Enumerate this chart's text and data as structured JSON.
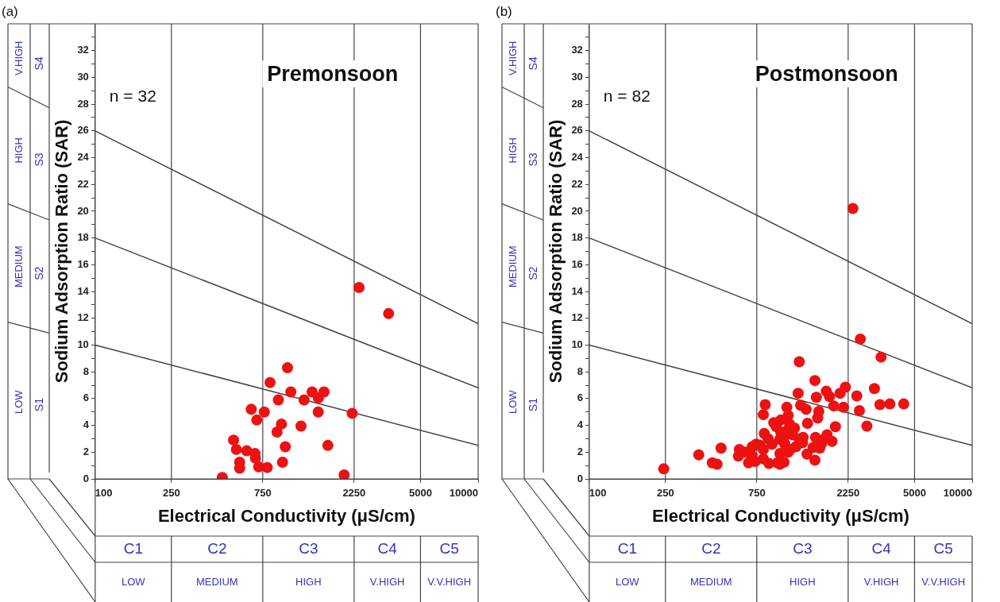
{
  "chart_data": [
    {
      "type": "scatter",
      "title": "Premonsoon",
      "xlabel": "Electrical Conductivity (μS/cm)",
      "ylabel": "Sodium Adsorption Ratio (SAR)",
      "log": "x",
      "xlim": [
        100,
        10000
      ],
      "ylim": [
        0,
        34
      ],
      "xticks": [
        100,
        250,
        750,
        2250,
        5000,
        10000
      ],
      "yticks": [
        0,
        {
          "value": 1,
          "label": null
        },
        2,
        {
          "value": 3,
          "label": null
        },
        4,
        {
          "value": 5,
          "label": null
        },
        6,
        {
          "value": 7,
          "label": null
        },
        8,
        {
          "value": 9,
          "label": null
        },
        10,
        {
          "value": 11,
          "label": null
        },
        12,
        {
          "value": 13,
          "label": null
        },
        14,
        {
          "value": 15,
          "label": null
        },
        16,
        {
          "value": 17,
          "label": null
        },
        18,
        {
          "value": 19,
          "label": null
        },
        20,
        {
          "value": 21,
          "label": null
        },
        22,
        {
          "value": 23,
          "label": null
        },
        24,
        {
          "value": 25,
          "label": null
        },
        26,
        {
          "value": 27,
          "label": null
        },
        28,
        {
          "value": 29,
          "label": null
        },
        30,
        {
          "value": 31,
          "label": null
        },
        32,
        {
          "value": 33,
          "label": null
        }
      ],
      "grid": false,
      "legend": false,
      "marker": "circle",
      "ref_lines": [
        {
          "axis": "x",
          "value": 250,
          "color": "#444444"
        },
        {
          "axis": "x",
          "value": 750,
          "color": "#444444"
        },
        {
          "axis": "x",
          "value": 2250,
          "color": "#444444"
        },
        {
          "axis": "x",
          "value": 5000,
          "color": "#444444"
        }
      ],
      "annotations": [
        "(a)",
        "n = 32",
        "S1",
        "S2",
        "S3",
        "S4",
        "LOW",
        "MEDIUM",
        "HIGH",
        "V.HIGH",
        "C1",
        "C2",
        "C3",
        "C4",
        "C5",
        "LOW",
        "MEDIUM",
        "HIGH",
        "V.HIGH",
        "V.V.HIGH"
      ],
      "series": [
        {
          "type": "line",
          "color": "#444444",
          "marker": "none",
          "x": [
            100,
            10000
          ],
          "values": [
            26,
            11.6
          ]
        },
        {
          "type": "line",
          "color": "#444444",
          "marker": "none",
          "x": [
            100,
            10000
          ],
          "values": [
            18,
            6.8
          ]
        },
        {
          "type": "line",
          "color": "#444444",
          "marker": "none",
          "x": [
            100,
            10000
          ],
          "values": [
            10,
            2.5
          ]
        },
        {
          "type": "scatter",
          "color": "#ee1111",
          "x": [
            2388,
            3406,
            1010,
            819,
            1051,
            1358,
            1566,
            1465,
            905,
            1233,
            653,
            764,
            1461,
            2198,
            698,
            939,
            1188,
            890,
            528,
            546,
            618,
            683,
            687,
            984,
            1641,
            568,
            568,
            714,
            792,
            951,
            1995,
            461
          ],
          "values": [
            14.3,
            12.35,
            8.3,
            7.2,
            6.5,
            6.5,
            6.5,
            6.05,
            5.9,
            5.9,
            5.2,
            5.0,
            5.0,
            4.9,
            4.4,
            4.1,
            3.95,
            3.5,
            2.9,
            2.2,
            2.1,
            1.9,
            1.55,
            2.4,
            2.5,
            1.25,
            0.8,
            0.9,
            0.85,
            1.25,
            0.3,
            0.1
          ]
        }
      ]
    },
    {
      "type": "scatter",
      "title": "Postmonsoon",
      "xlabel": "Electrical Conductivity (μS/cm)",
      "ylabel": "Sodium Adsorption Ratio (SAR)",
      "log": "x",
      "xlim": [
        100,
        10000
      ],
      "ylim": [
        0,
        34
      ],
      "xticks": [
        100,
        250,
        750,
        2250,
        5000,
        10000
      ],
      "yticks": [
        0,
        {
          "value": 1,
          "label": null
        },
        2,
        {
          "value": 3,
          "label": null
        },
        4,
        {
          "value": 5,
          "label": null
        },
        6,
        {
          "value": 7,
          "label": null
        },
        8,
        {
          "value": 9,
          "label": null
        },
        10,
        {
          "value": 11,
          "label": null
        },
        12,
        {
          "value": 13,
          "label": null
        },
        14,
        {
          "value": 15,
          "label": null
        },
        16,
        {
          "value": 17,
          "label": null
        },
        18,
        {
          "value": 19,
          "label": null
        },
        20,
        {
          "value": 21,
          "label": null
        },
        22,
        {
          "value": 23,
          "label": null
        },
        24,
        {
          "value": 25,
          "label": null
        },
        26,
        {
          "value": 27,
          "label": null
        },
        28,
        {
          "value": 29,
          "label": null
        },
        30,
        {
          "value": 31,
          "label": null
        },
        32,
        {
          "value": 33,
          "label": null
        }
      ],
      "grid": false,
      "legend": false,
      "marker": "circle",
      "ref_lines": [
        {
          "axis": "x",
          "value": 250,
          "color": "#444444"
        },
        {
          "axis": "x",
          "value": 750,
          "color": "#444444"
        },
        {
          "axis": "x",
          "value": 2250,
          "color": "#444444"
        },
        {
          "axis": "x",
          "value": 5000,
          "color": "#444444"
        }
      ],
      "annotations": [
        "(b)",
        "n = 82",
        "S1",
        "S2",
        "S3",
        "S4",
        "LOW",
        "MEDIUM",
        "HIGH",
        "V.HIGH",
        "C1",
        "C2",
        "C3",
        "C4",
        "C5",
        "LOW",
        "MEDIUM",
        "HIGH",
        "V.HIGH",
        "V.V.HIGH"
      ],
      "series": [
        {
          "type": "line",
          "color": "#444444",
          "marker": "none",
          "x": [
            100,
            10000
          ],
          "values": [
            26,
            11.6
          ]
        },
        {
          "type": "line",
          "color": "#444444",
          "marker": "none",
          "x": [
            100,
            10000
          ],
          "values": [
            18,
            6.8
          ]
        },
        {
          "type": "line",
          "color": "#444444",
          "marker": "none",
          "x": [
            100,
            10000
          ],
          "values": [
            10,
            2.5
          ]
        },
        {
          "type": "scatter",
          "color": "#ee1111",
          "x": [
            245,
            373,
            488,
            439,
            465,
            608,
            601,
            679,
            710,
            710,
            811,
            811,
            830,
            811,
            820,
            948,
            868,
            990,
            990,
            990,
            745,
            650,
            780,
            735,
            2381,
            2604,
            3342,
            1250,
            1509,
            1233,
            1535,
            1729,
            1799,
            2042,
            2177,
            2495,
            3085,
            3298,
            3717,
            4390,
            2576,
            2818,
            1271,
            1358,
            1076,
            1892,
            2128,
            1581,
            1560,
            1380,
            1094,
            1112,
            1150,
            1245,
            1040,
            1309,
            1080,
            1520,
            1746,
            1931,
            1854,
            1597,
            1476,
            1700,
            1630,
            1094,
            1371,
            1509,
            1040,
            960,
            1000,
            1180,
            900,
            1050,
            1200,
            920,
            1120,
            860,
            1000,
            1300
          ],
          "values": [
            0.75,
            1.8,
            2.3,
            1.2,
            1.1,
            2.2,
            1.7,
            1.2,
            2.4,
            1.7,
            2.2,
            1.5,
            5.55,
            4.8,
            3.4,
            3.9,
            1.15,
            2.95,
            1.9,
            1.1,
            2.6,
            2.0,
            2.5,
            1.3,
            20.2,
            10.45,
            9.1,
            8.75,
            7.35,
            6.4,
            6.1,
            6.55,
            6.15,
            6.4,
            6.85,
            6.2,
            6.75,
            5.55,
            5.6,
            5.6,
            5.1,
            3.95,
            5.5,
            5.2,
            5.35,
            5.45,
            5.35,
            5.05,
            4.55,
            4.15,
            4.75,
            4.1,
            3.3,
            3.0,
            3.1,
            3.1,
            3.6,
            3.1,
            3.3,
            3.9,
            2.8,
            2.3,
            2.35,
            3.0,
            2.6,
            2.0,
            1.85,
            1.4,
            1.25,
            1.2,
            3.5,
            3.8,
            2.6,
            2.6,
            2.4,
            4.2,
            2.2,
            3.0,
            4.4,
            2.7
          ]
        }
      ]
    }
  ]
}
